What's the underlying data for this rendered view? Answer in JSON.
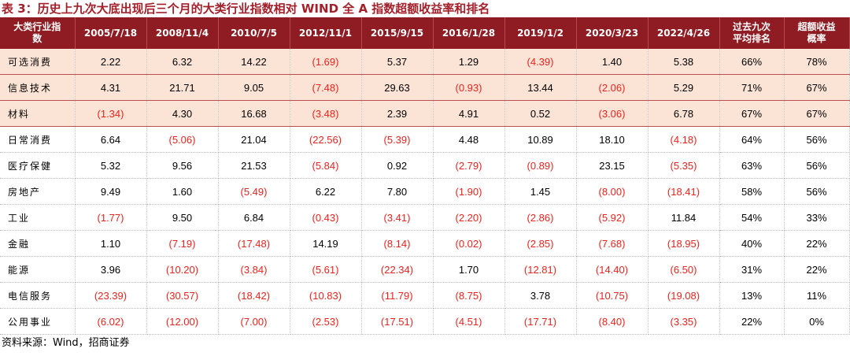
{
  "title": "表 3：历史上九次大底出现后三个月的大类行业指数相对 WIND 全 A 指数超额收益率和排名",
  "table": {
    "header": [
      "大类行业指数",
      "2005/7/18",
      "2008/11/4",
      "2010/7/5",
      "2012/11/1",
      "2015/9/15",
      "2016/1/28",
      "2019/1/2",
      "2020/3/23",
      "2022/4/26",
      "过去九次平均排名",
      "超额收益概率"
    ],
    "rows": [
      [
        "可选消费",
        "2.22",
        "6.32",
        "14.22",
        "(1.69)",
        "5.37",
        "1.29",
        "(4.39)",
        "1.40",
        "5.38",
        "66%",
        "78%"
      ],
      [
        "信息技术",
        "4.31",
        "21.71",
        "9.05",
        "(7.48)",
        "29.63",
        "(0.93)",
        "13.44",
        "(2.06)",
        "5.29",
        "71%",
        "67%"
      ],
      [
        "材料",
        "(1.34)",
        "4.30",
        "16.68",
        "(3.48)",
        "2.39",
        "4.91",
        "0.52",
        "(3.06)",
        "6.78",
        "67%",
        "67%"
      ],
      [
        "日常消费",
        "6.64",
        "(5.06)",
        "21.04",
        "(22.56)",
        "(5.39)",
        "4.48",
        "10.89",
        "18.10",
        "(4.18)",
        "64%",
        "56%"
      ],
      [
        "医疗保健",
        "5.32",
        "9.56",
        "21.53",
        "(5.84)",
        "0.92",
        "(2.79)",
        "(0.89)",
        "23.15",
        "(5.35)",
        "63%",
        "56%"
      ],
      [
        "房地产",
        "9.49",
        "1.60",
        "(5.49)",
        "6.22",
        "7.80",
        "(1.90)",
        "1.45",
        "(8.00)",
        "(18.41)",
        "58%",
        "56%"
      ],
      [
        "工业",
        "(1.77)",
        "9.50",
        "6.84",
        "(0.43)",
        "(3.41)",
        "(2.20)",
        "(2.86)",
        "(5.92)",
        "11.84",
        "54%",
        "33%"
      ],
      [
        "金融",
        "1.10",
        "(7.19)",
        "(17.48)",
        "14.19",
        "(8.14)",
        "(0.02)",
        "(2.85)",
        "(7.68)",
        "(18.95)",
        "40%",
        "22%"
      ],
      [
        "能源",
        "3.96",
        "(10.20)",
        "(3.84)",
        "(5.61)",
        "(22.34)",
        "1.70",
        "(12.81)",
        "(14.40)",
        "(6.50)",
        "31%",
        "22%"
      ],
      [
        "电信服务",
        "(23.39)",
        "(30.57)",
        "(18.42)",
        "(10.83)",
        "(11.79)",
        "(8.75)",
        "3.78",
        "(10.75)",
        "(19.08)",
        "13%",
        "11%"
      ],
      [
        "公用事业",
        "(6.02)",
        "(12.00)",
        "(7.00)",
        "(2.53)",
        "(17.51)",
        "(4.51)",
        "(17.71)",
        "(8.40)",
        "(3.35)",
        "22%",
        "0%"
      ]
    ]
  },
  "source": "资料来源：Wind，招商证券"
}
